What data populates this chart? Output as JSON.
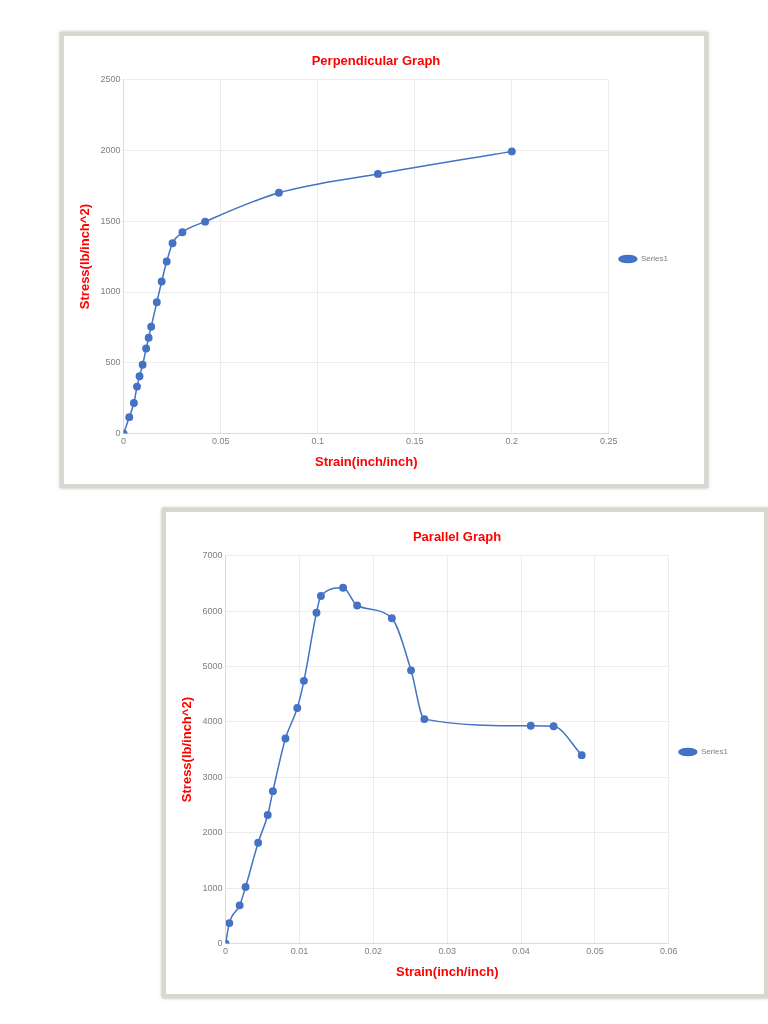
{
  "chart_data": [
    {
      "type": "line",
      "title": "Perpendicular Graph",
      "xlabel": "Strain(inch/inch)",
      "ylabel": "Stress(lb/inch^2)",
      "series": [
        {
          "name": "Series1",
          "color": "#4472c4",
          "x": [
            0,
            0.0029,
            0.0053,
            0.0069,
            0.0082,
            0.0098,
            0.0116,
            0.0129,
            0.0142,
            0.0171,
            0.0196,
            0.0222,
            0.0252,
            0.0303,
            0.042,
            0.08,
            0.131,
            0.2
          ],
          "values": [
            0,
            116,
            216,
            332,
            405,
            486,
            601,
            677,
            755,
            928,
            1074,
            1215,
            1344,
            1422,
            1497,
            1701,
            1834,
            1993
          ]
        }
      ],
      "xlim": [
        0,
        0.25
      ],
      "xticks": [
        0,
        0.05,
        0.1,
        0.15,
        0.2,
        0.25
      ],
      "ylim": [
        0,
        2500
      ],
      "yticks": [
        0,
        500,
        1000,
        1500,
        2000,
        2500
      ],
      "grid": true,
      "legend": "right",
      "marker": "circle"
    },
    {
      "type": "line",
      "title": "Parallel Graph",
      "xlabel": "Strain(inch/inch)",
      "ylabel": "Stress(lb/inch^2)",
      "series": [
        {
          "name": "Series1",
          "color": "#4472c4",
          "x": [
            0,
            0.0005,
            0.0019,
            0.0027,
            0.0044,
            0.0057,
            0.0064,
            0.0081,
            0.0097,
            0.0106,
            0.0123,
            0.0129,
            0.0159,
            0.0178,
            0.0225,
            0.0251,
            0.0269,
            0.0413,
            0.0444,
            0.0482
          ],
          "values": [
            0,
            370,
            690,
            1020,
            1820,
            2320,
            2750,
            3700,
            4250,
            4740,
            5970,
            6270,
            6420,
            6100,
            5870,
            4930,
            4050,
            3930,
            3920,
            3400
          ]
        }
      ],
      "xlim": [
        0,
        0.06
      ],
      "xticks": [
        0,
        0.01,
        0.02,
        0.03,
        0.04,
        0.05,
        0.06
      ],
      "ylim": [
        0,
        7000
      ],
      "yticks": [
        0,
        1000,
        2000,
        3000,
        4000,
        5000,
        6000,
        7000
      ],
      "grid": true,
      "legend": "right",
      "marker": "circle"
    }
  ]
}
